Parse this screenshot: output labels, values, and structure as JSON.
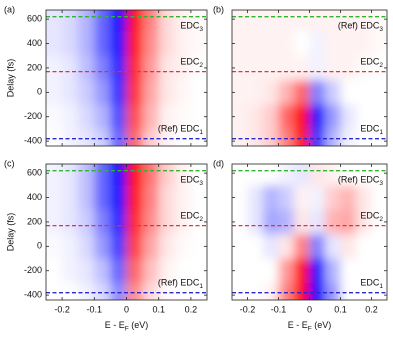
{
  "chart_data": [
    {
      "type": "heatmap",
      "panel_label": "(a)",
      "ylabel": "Delay (fs)",
      "show_xticklabels": false,
      "show_yticklabels": true,
      "x": [
        -0.225,
        -0.175,
        -0.125,
        -0.075,
        -0.025,
        0.025,
        0.075,
        0.125,
        0.175,
        0.225
      ],
      "y": [
        600,
        400,
        200,
        0,
        -200,
        -400
      ],
      "z": [
        [
          -0.1,
          -0.15,
          -0.3,
          -0.6,
          -0.95,
          0.95,
          0.5,
          0.15,
          0.05,
          0.02
        ],
        [
          -0.1,
          -0.15,
          -0.3,
          -0.6,
          -0.9,
          0.9,
          0.45,
          0.15,
          0.05,
          0.02
        ],
        [
          -0.05,
          -0.1,
          -0.25,
          -0.5,
          -0.85,
          0.85,
          0.4,
          0.1,
          0.05,
          0
        ],
        [
          -0.05,
          -0.1,
          -0.2,
          -0.4,
          -0.8,
          0.8,
          0.35,
          0.1,
          0.03,
          0
        ],
        [
          -0.02,
          -0.05,
          -0.15,
          -0.3,
          -0.7,
          0.7,
          0.3,
          0.05,
          0.02,
          0
        ],
        [
          0,
          -0.05,
          -0.1,
          -0.2,
          -0.6,
          0.6,
          0.2,
          0.05,
          0,
          0
        ]
      ],
      "xlim": [
        -0.25,
        0.25
      ],
      "ylim": [
        -440,
        675
      ],
      "xticks": [
        -0.2,
        -0.1,
        0,
        0.1,
        0.2
      ],
      "yticks": [
        -400,
        -200,
        0,
        200,
        400,
        600
      ],
      "edc": [
        {
          "value": 620,
          "color": "#2db52d",
          "prefix": "",
          "label": "EDC",
          "subscript": "3"
        },
        {
          "value": 170,
          "color": "#e8303a",
          "prefix": "",
          "label": "EDC",
          "subscript": "2"
        },
        {
          "value": -380,
          "color": "#2a2ad0",
          "prefix": "(Ref) ",
          "label": "EDC",
          "subscript": "1"
        }
      ]
    },
    {
      "type": "heatmap",
      "panel_label": "(b)",
      "show_xticklabels": false,
      "show_yticklabels": false,
      "x": [
        -0.225,
        -0.175,
        -0.125,
        -0.075,
        -0.025,
        0.025,
        0.075,
        0.125,
        0.175,
        0.225
      ],
      "y": [
        600,
        400,
        200,
        0,
        -200,
        -400
      ],
      "z": [
        [
          0.05,
          0.05,
          0.05,
          0.05,
          0.05,
          0.05,
          0.05,
          0.05,
          0.05,
          0.02
        ],
        [
          0.05,
          0.05,
          0.05,
          0.05,
          0,
          -0.05,
          0.05,
          0.05,
          0.05,
          0.02
        ],
        [
          0.05,
          0.05,
          0.05,
          0.05,
          0.05,
          -0.05,
          0.05,
          0.05,
          0.02,
          0
        ],
        [
          0.05,
          0.05,
          0.1,
          0.3,
          0.6,
          -0.5,
          -0.2,
          0,
          0,
          0
        ],
        [
          0.05,
          0.1,
          0.2,
          0.6,
          0.95,
          -0.9,
          -0.4,
          -0.1,
          0,
          0
        ],
        [
          0.05,
          0.1,
          0.2,
          0.5,
          0.9,
          -0.8,
          -0.3,
          -0.05,
          0,
          0
        ]
      ],
      "xlim": [
        -0.25,
        0.25
      ],
      "ylim": [
        -440,
        675
      ],
      "xticks": [
        -0.2,
        -0.1,
        0,
        0.1,
        0.2
      ],
      "yticks": [
        -400,
        -200,
        0,
        200,
        400,
        600
      ],
      "edc": [
        {
          "value": 620,
          "color": "#2db52d",
          "prefix": "(Ref) ",
          "label": "EDC",
          "subscript": "3"
        },
        {
          "value": 170,
          "color": "#e8303a",
          "prefix": "",
          "label": "EDC",
          "subscript": "2"
        },
        {
          "value": -380,
          "color": "#2a2ad0",
          "prefix": "",
          "label": "EDC",
          "subscript": "1"
        }
      ]
    },
    {
      "type": "heatmap",
      "panel_label": "(c)",
      "ylabel": "Delay (fs)",
      "xlabel": {
        "main": "E - E",
        "subscript": "F",
        "unit": " (eV)"
      },
      "show_xticklabels": true,
      "show_yticklabels": true,
      "x": [
        -0.225,
        -0.175,
        -0.125,
        -0.075,
        -0.025,
        0.025,
        0.075,
        0.125,
        0.175,
        0.225
      ],
      "y": [
        600,
        400,
        200,
        0,
        -200,
        -400
      ],
      "z": [
        [
          -0.05,
          -0.1,
          -0.25,
          -0.6,
          -0.95,
          0.95,
          0.55,
          0.2,
          0.05,
          0
        ],
        [
          -0.05,
          -0.1,
          -0.25,
          -0.6,
          -0.9,
          0.9,
          0.5,
          0.15,
          0.05,
          0
        ],
        [
          -0.05,
          -0.1,
          -0.2,
          -0.5,
          -0.85,
          0.85,
          0.45,
          0.15,
          0.05,
          0
        ],
        [
          -0.02,
          -0.05,
          -0.15,
          -0.4,
          -0.75,
          0.75,
          0.35,
          0.1,
          0.02,
          0
        ],
        [
          0,
          -0.05,
          -0.1,
          -0.25,
          -0.6,
          0.6,
          0.25,
          0.05,
          0,
          0
        ],
        [
          0,
          0,
          -0.05,
          -0.15,
          -0.45,
          0.45,
          0.15,
          0.02,
          0,
          0
        ]
      ],
      "xlim": [
        -0.25,
        0.25
      ],
      "ylim": [
        -440,
        675
      ],
      "xticks": [
        -0.2,
        -0.1,
        0,
        0.1,
        0.2
      ],
      "yticks": [
        -400,
        -200,
        0,
        200,
        400,
        600
      ],
      "edc": [
        {
          "value": 620,
          "color": "#2db52d",
          "prefix": "",
          "label": "EDC",
          "subscript": "3"
        },
        {
          "value": 170,
          "color": "#e8303a",
          "prefix": "",
          "label": "EDC",
          "subscript": "2"
        },
        {
          "value": -380,
          "color": "#2a2ad0",
          "prefix": "(Ref) ",
          "label": "EDC",
          "subscript": "1"
        }
      ]
    },
    {
      "type": "heatmap",
      "panel_label": "(d)",
      "xlabel": {
        "main": "E - E",
        "subscript": "F",
        "unit": " (eV)"
      },
      "show_xticklabels": true,
      "show_yticklabels": false,
      "x": [
        -0.225,
        -0.175,
        -0.125,
        -0.075,
        -0.025,
        0.025,
        0.075,
        0.125,
        0.175,
        0.225
      ],
      "y": [
        600,
        400,
        200,
        0,
        -200,
        -400
      ],
      "z": [
        [
          0,
          0,
          0,
          -0.05,
          -0.1,
          0.1,
          0.05,
          0,
          0,
          0
        ],
        [
          0,
          -0.1,
          -0.3,
          -0.2,
          0.05,
          -0.05,
          0.2,
          0.3,
          0.1,
          0
        ],
        [
          0,
          -0.1,
          -0.35,
          -0.3,
          0.1,
          -0.1,
          0.3,
          0.35,
          0.1,
          0
        ],
        [
          0,
          0,
          -0.1,
          0.1,
          0.5,
          -0.5,
          -0.1,
          0.1,
          0,
          0
        ],
        [
          0,
          0,
          0,
          0.4,
          0.95,
          -0.95,
          -0.3,
          0,
          0,
          0
        ],
        [
          0,
          0,
          0.05,
          0.5,
          1,
          -1,
          -0.4,
          0,
          0,
          0
        ]
      ],
      "xlim": [
        -0.25,
        0.25
      ],
      "ylim": [
        -440,
        675
      ],
      "xticks": [
        -0.2,
        -0.1,
        0,
        0.1,
        0.2
      ],
      "yticks": [
        -400,
        -200,
        0,
        200,
        400,
        600
      ],
      "edc": [
        {
          "value": 620,
          "color": "#2db52d",
          "prefix": "(Ref) ",
          "label": "EDC",
          "subscript": "3"
        },
        {
          "value": 170,
          "color": "#e8303a",
          "prefix": "",
          "label": "EDC",
          "subscript": "2"
        },
        {
          "value": -380,
          "color": "#2a2ad0",
          "prefix": "",
          "label": "EDC",
          "subscript": "1"
        }
      ]
    }
  ]
}
